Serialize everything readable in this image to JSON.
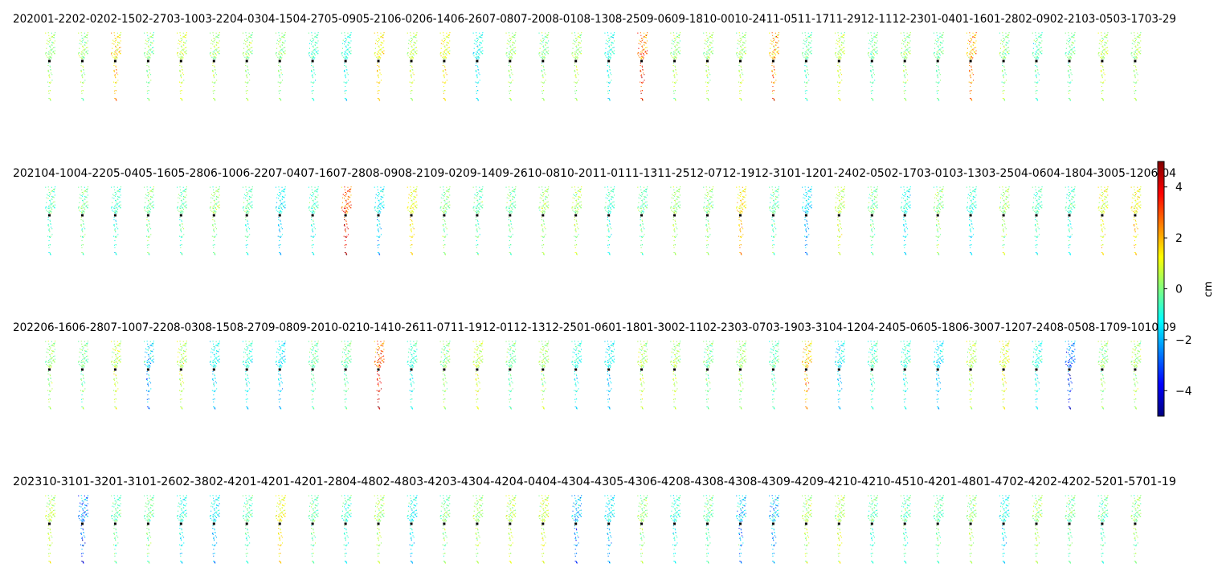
{
  "chart_data": {
    "type": "heatmap",
    "colormap": "jet",
    "colorbar": {
      "label": "cm",
      "range": [
        -5,
        5
      ],
      "ticks": [
        -4,
        -2,
        0,
        2,
        4
      ],
      "tick_labels": [
        "−4",
        "−2",
        "0",
        "2",
        "4"
      ]
    },
    "rows": [
      {
        "year": "2020",
        "title_line": "202001-2202-0202-1502-2703-1003-2204-0304-1504-2705-0905-2106-0206-1406-2607-0807-2008-0108-1308-2509-0609-1810-0010-2411-0511-1711-2912-1112-2301-0401-1601-2802-0902-2103-0503-1703-29",
        "panels": 34,
        "mean_shift": [
          0.2,
          0.1,
          1.6,
          0.0,
          0.6,
          0.3,
          0.2,
          0.1,
          -0.6,
          -0.8,
          1.2,
          0.5,
          1.0,
          -1.1,
          0.2,
          0.1,
          0.3,
          -0.9,
          2.6,
          0.2,
          0.3,
          0.4,
          2.0,
          -0.4,
          0.6,
          -0.3,
          0.1,
          -0.2,
          1.8,
          0.1,
          -0.5,
          -0.1,
          0.4,
          0.3
        ]
      },
      {
        "year": "2021",
        "title_line": "202104-1004-2205-0405-1605-2806-1006-2207-0407-1607-2808-0908-2109-0209-1409-2610-0810-2011-0111-1311-2512-0712-1912-3101-1201-2402-0502-1703-0103-1303-2504-0604-1804-3005-1206-04",
        "panels": 34,
        "mean_shift": [
          -0.5,
          -0.2,
          -0.7,
          0.0,
          -0.3,
          0.1,
          -0.4,
          -1.2,
          -0.6,
          2.8,
          -1.4,
          1.0,
          0.0,
          -0.3,
          -0.2,
          0.3,
          0.4,
          -0.6,
          -0.3,
          0.2,
          0.1,
          1.5,
          -0.4,
          -1.5,
          0.6,
          -0.2,
          -1.0,
          0.1,
          -0.8,
          0.3,
          -0.6,
          -0.7,
          0.9,
          1.2
        ]
      },
      {
        "year": "2022",
        "title_line": "202206-1606-2807-1007-2208-0308-1508-2709-0809-2010-0210-1410-2611-0711-1912-0112-1312-2501-0601-1801-3002-1102-2303-0703-1903-3104-1204-2405-0605-1806-3007-1207-2408-0508-1709-1010-09",
        "panels": 34,
        "mean_shift": [
          0.2,
          -0.1,
          0.6,
          -1.6,
          0.5,
          -1.2,
          -0.9,
          -1.4,
          -0.3,
          -0.2,
          2.9,
          -0.8,
          0.1,
          0.7,
          -0.2,
          0.3,
          -0.9,
          -1.3,
          0.5,
          0.4,
          -0.1,
          0.2,
          -0.4,
          1.6,
          -1.3,
          -0.6,
          -0.7,
          -1.4,
          0.4,
          0.9,
          -1.0,
          -2.6,
          0.1,
          0.3
        ]
      },
      {
        "year": "2023",
        "title_line": "202310-3101-3201-3101-2602-3802-4201-4201-4201-2804-4802-4803-4203-4304-4204-0404-4304-4305-4306-4208-4308-4308-4309-4209-4210-4210-4510-4201-4801-4702-4202-4202-5201-5701-19",
        "panels": 34,
        "mean_shift": [
          0.5,
          -2.4,
          -0.3,
          -0.1,
          -1.0,
          -1.5,
          -0.4,
          1.2,
          -0.2,
          -0.6,
          0.4,
          -1.2,
          -0.1,
          0.3,
          0.5,
          0.7,
          -1.9,
          -1.4,
          0.2,
          -0.9,
          -0.3,
          -1.6,
          -1.7,
          0.4,
          0.6,
          -0.5,
          -0.4,
          -0.3,
          0.2,
          -1.1,
          0.3,
          -0.2,
          -0.4,
          0.1
        ]
      }
    ]
  }
}
